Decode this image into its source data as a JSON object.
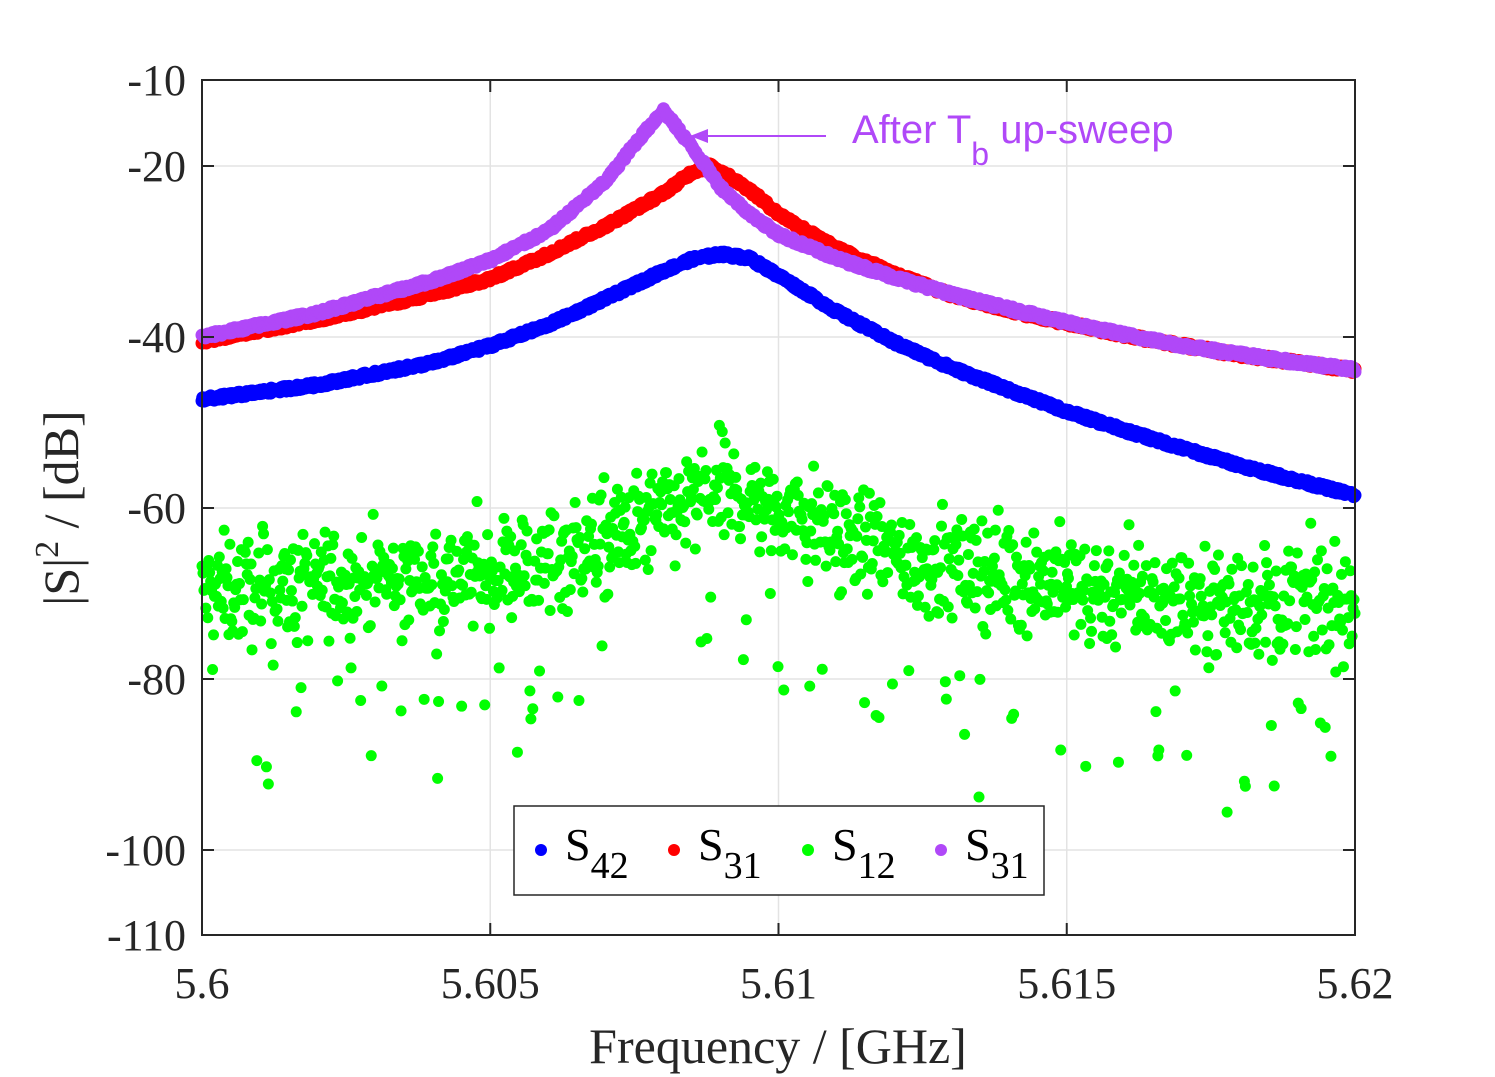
{
  "chart_data": {
    "type": "scatter",
    "xlabel": "Frequency / [GHz]",
    "ylabel_main": "|S|",
    "ylabel_sup": "2",
    "ylabel_tail": " / [dB]",
    "xlim": [
      5.6,
      5.62
    ],
    "ylim": [
      -110,
      -10
    ],
    "xticks": [
      5.6,
      5.605,
      5.61,
      5.615,
      5.62
    ],
    "xtick_labels": [
      "5.6",
      "5.605",
      "5.61",
      "5.615",
      "5.62"
    ],
    "yticks": [
      -10,
      -20,
      -40,
      -60,
      -80,
      -100,
      -110
    ],
    "ytick_labels": [
      "-10",
      "-20",
      "-40",
      "-60",
      "-80",
      "-100",
      "-110"
    ],
    "grid": true,
    "legend_position": "bottom-center",
    "series": [
      {
        "name": "S42",
        "label_main": "S",
        "label_sub": "42",
        "color": "#0000ff",
        "x": [
          5.6,
          5.602,
          5.604,
          5.605,
          5.606,
          5.607,
          5.608,
          5.6085,
          5.609,
          5.6095,
          5.61,
          5.611,
          5.612,
          5.613,
          5.614,
          5.615,
          5.616,
          5.617,
          5.618,
          5.619,
          5.62
        ],
        "y": [
          -47.3,
          -45.6,
          -43.0,
          -41.0,
          -38.6,
          -35.5,
          -32.3,
          -30.9,
          -30.3,
          -30.8,
          -32.8,
          -37.0,
          -40.6,
          -43.6,
          -46.2,
          -48.7,
          -50.9,
          -53.0,
          -55.0,
          -56.8,
          -58.5
        ]
      },
      {
        "name": "S31",
        "label_main": "S",
        "label_sub": "31",
        "color": "#ff0000",
        "x": [
          5.6,
          5.602,
          5.604,
          5.605,
          5.606,
          5.607,
          5.608,
          5.6085,
          5.6088,
          5.609,
          5.6095,
          5.61,
          5.611,
          5.612,
          5.613,
          5.614,
          5.615,
          5.616,
          5.617,
          5.618,
          5.619,
          5.62
        ],
        "y": [
          -40.5,
          -38.0,
          -35.0,
          -33.2,
          -30.3,
          -27.0,
          -23.2,
          -20.7,
          -20.0,
          -20.6,
          -22.8,
          -25.6,
          -29.6,
          -32.6,
          -35.1,
          -36.9,
          -38.4,
          -39.8,
          -41.0,
          -42.1,
          -43.0,
          -43.9
        ]
      },
      {
        "name": "S12",
        "label_main": "S",
        "label_sub": "12",
        "color": "#00ff00",
        "x": [
          5.6,
          5.602,
          5.604,
          5.605,
          5.606,
          5.607,
          5.608,
          5.609,
          5.61,
          5.611,
          5.612,
          5.613,
          5.614,
          5.615,
          5.616,
          5.617,
          5.618,
          5.619,
          5.62
        ],
        "y": [
          -70.0,
          -69.0,
          -68.0,
          -67.5,
          -66.0,
          -64.0,
          -61.0,
          -58.0,
          -60.0,
          -63.0,
          -65.5,
          -67.0,
          -67.5,
          -69.0,
          -70.0,
          -70.5,
          -71.0,
          -71.0,
          -71.0
        ],
        "noisy": true
      },
      {
        "name": "S31 (after Tb up-sweep)",
        "label_main": "S",
        "label_sub": "31",
        "color": "#b048f8",
        "x": [
          5.6,
          5.602,
          5.604,
          5.605,
          5.606,
          5.607,
          5.6075,
          5.608,
          5.6085,
          5.609,
          5.6095,
          5.61,
          5.611,
          5.612,
          5.613,
          5.614,
          5.615,
          5.616,
          5.617,
          5.618,
          5.619,
          5.62
        ],
        "y": [
          -40.0,
          -37.2,
          -33.4,
          -31.0,
          -27.6,
          -21.8,
          -17.5,
          -13.5,
          -17.8,
          -22.5,
          -25.6,
          -28.0,
          -30.8,
          -33.0,
          -35.0,
          -36.7,
          -38.3,
          -39.7,
          -41.0,
          -42.0,
          -43.0,
          -43.8
        ]
      }
    ],
    "annotation": {
      "text_main": "After T",
      "text_sub": "b",
      "text_tail": " up-sweep",
      "color": "#b048f8",
      "arrow_target": [
        5.6082,
        -15.8
      ]
    }
  }
}
